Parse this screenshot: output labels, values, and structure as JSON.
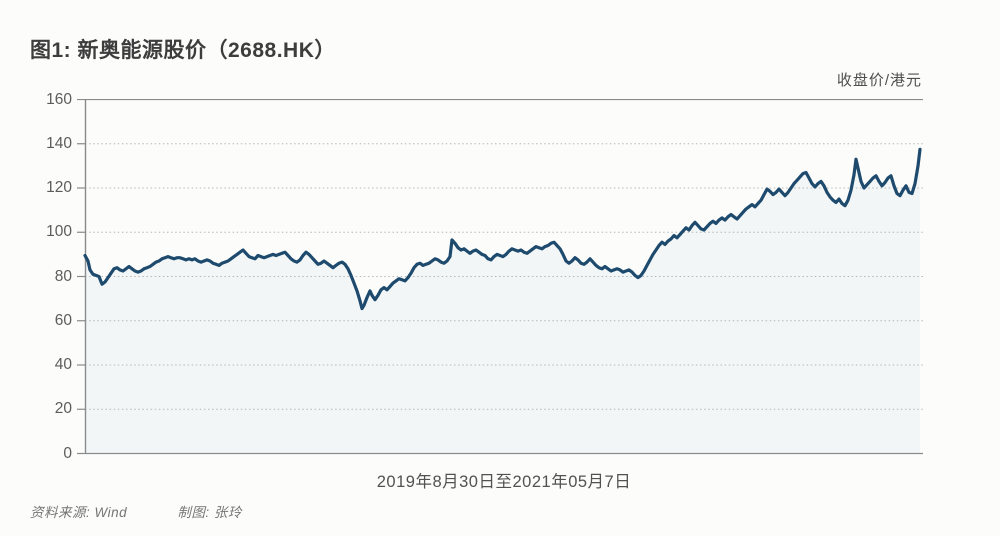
{
  "title": "图1: 新奥能源股价（2688.HK）",
  "unit_label": "收盘价/港元",
  "x_axis_label": "2019年8月30日至2021年05月7日",
  "footer": {
    "source": "资料来源: Wind",
    "credit": "制图: 张玲"
  },
  "colors": {
    "line": "#1d4a6d",
    "fill": "rgba(125,165,205,0.07)",
    "axis": "#8a8a8a",
    "grid": "#b8b8b8",
    "title_text": "#3d3d3d",
    "label_text": "#5c5c5c"
  },
  "chart_data": {
    "type": "line",
    "title": "新奥能源股价（2688.HK）",
    "ylabel": "收盘价/港元",
    "xlabel": "2019年8月30日至2021年05月7日",
    "x_range_note": "2019-08-30 to 2021-05-07, x in plot pixels 0-835",
    "ylim": [
      0,
      160
    ],
    "yticks": [
      0,
      20,
      40,
      60,
      80,
      100,
      120,
      140,
      160
    ],
    "grid": "horizontal-dotted",
    "legend": "none",
    "series": [
      {
        "name": "收盘价",
        "points": [
          [
            0,
            89.5
          ],
          [
            3,
            87
          ],
          [
            5,
            83
          ],
          [
            8,
            81
          ],
          [
            11,
            80.5
          ],
          [
            14,
            80
          ],
          [
            17,
            76.5
          ],
          [
            20,
            77.5
          ],
          [
            23,
            79.5
          ],
          [
            26,
            81.5
          ],
          [
            29,
            83.5
          ],
          [
            32,
            84
          ],
          [
            35,
            83
          ],
          [
            38,
            82.5
          ],
          [
            41,
            83.5
          ],
          [
            44,
            84.5
          ],
          [
            47,
            83.5
          ],
          [
            50,
            82.5
          ],
          [
            53,
            82
          ],
          [
            56,
            82.5
          ],
          [
            59,
            83.5
          ],
          [
            62,
            84
          ],
          [
            65,
            84.5
          ],
          [
            68,
            85.5
          ],
          [
            71,
            86.5
          ],
          [
            74,
            87
          ],
          [
            77,
            88
          ],
          [
            80,
            88.5
          ],
          [
            83,
            89
          ],
          [
            86,
            88.5
          ],
          [
            89,
            88
          ],
          [
            92,
            88.5
          ],
          [
            95,
            88.5
          ],
          [
            98,
            88
          ],
          [
            101,
            87.5
          ],
          [
            104,
            88
          ],
          [
            107,
            87.5
          ],
          [
            110,
            88
          ],
          [
            113,
            87
          ],
          [
            116,
            86.5
          ],
          [
            119,
            87
          ],
          [
            122,
            87.5
          ],
          [
            125,
            87
          ],
          [
            128,
            86
          ],
          [
            131,
            85.5
          ],
          [
            134,
            85
          ],
          [
            137,
            86
          ],
          [
            140,
            86.5
          ],
          [
            143,
            87
          ],
          [
            146,
            88
          ],
          [
            149,
            89
          ],
          [
            152,
            90
          ],
          [
            155,
            91
          ],
          [
            158,
            92
          ],
          [
            161,
            90.5
          ],
          [
            164,
            89
          ],
          [
            167,
            88.5
          ],
          [
            170,
            88
          ],
          [
            173,
            89.5
          ],
          [
            176,
            89
          ],
          [
            179,
            88.5
          ],
          [
            182,
            89
          ],
          [
            185,
            89.5
          ],
          [
            188,
            90
          ],
          [
            191,
            89.5
          ],
          [
            194,
            90
          ],
          [
            197,
            90.5
          ],
          [
            200,
            91
          ],
          [
            203,
            89.5
          ],
          [
            206,
            88
          ],
          [
            209,
            87
          ],
          [
            212,
            86.5
          ],
          [
            215,
            87.5
          ],
          [
            218,
            89.5
          ],
          [
            221,
            91
          ],
          [
            224,
            90
          ],
          [
            227,
            88.5
          ],
          [
            230,
            87
          ],
          [
            233,
            85.5
          ],
          [
            236,
            86
          ],
          [
            239,
            87
          ],
          [
            242,
            86
          ],
          [
            245,
            85
          ],
          [
            248,
            84
          ],
          [
            251,
            85
          ],
          [
            254,
            86
          ],
          [
            257,
            86.5
          ],
          [
            260,
            85.5
          ],
          [
            263,
            83.5
          ],
          [
            266,
            80.5
          ],
          [
            269,
            77
          ],
          [
            272,
            73.5
          ],
          [
            275,
            69
          ],
          [
            277,
            65.5
          ],
          [
            279,
            67
          ],
          [
            282,
            70.5
          ],
          [
            285,
            73.5
          ],
          [
            287,
            71.5
          ],
          [
            290,
            69.5
          ],
          [
            293,
            71.5
          ],
          [
            296,
            74
          ],
          [
            299,
            75
          ],
          [
            302,
            74
          ],
          [
            305,
            75.5
          ],
          [
            308,
            77
          ],
          [
            311,
            78
          ],
          [
            314,
            79
          ],
          [
            317,
            78.5
          ],
          [
            320,
            78
          ],
          [
            323,
            79.5
          ],
          [
            326,
            81.5
          ],
          [
            329,
            84
          ],
          [
            332,
            85.5
          ],
          [
            335,
            86
          ],
          [
            338,
            85
          ],
          [
            341,
            85.5
          ],
          [
            344,
            86
          ],
          [
            347,
            87
          ],
          [
            350,
            88
          ],
          [
            353,
            87.5
          ],
          [
            356,
            86.5
          ],
          [
            359,
            86
          ],
          [
            362,
            87
          ],
          [
            365,
            89
          ],
          [
            367,
            96.5
          ],
          [
            370,
            95
          ],
          [
            373,
            93
          ],
          [
            376,
            92
          ],
          [
            379,
            92.5
          ],
          [
            382,
            91.5
          ],
          [
            385,
            90.5
          ],
          [
            388,
            91.5
          ],
          [
            391,
            92
          ],
          [
            394,
            91
          ],
          [
            397,
            90
          ],
          [
            400,
            89.5
          ],
          [
            403,
            88
          ],
          [
            406,
            87.5
          ],
          [
            409,
            89
          ],
          [
            412,
            90
          ],
          [
            415,
            89.5
          ],
          [
            418,
            89
          ],
          [
            421,
            90
          ],
          [
            424,
            91.5
          ],
          [
            427,
            92.5
          ],
          [
            430,
            92
          ],
          [
            433,
            91.5
          ],
          [
            436,
            92
          ],
          [
            439,
            91
          ],
          [
            442,
            90.5
          ],
          [
            445,
            91.5
          ],
          [
            448,
            92.5
          ],
          [
            451,
            93.5
          ],
          [
            454,
            93
          ],
          [
            457,
            92.5
          ],
          [
            460,
            93.5
          ],
          [
            463,
            94
          ],
          [
            466,
            95
          ],
          [
            469,
            95.5
          ],
          [
            472,
            94
          ],
          [
            475,
            92.5
          ],
          [
            478,
            90
          ],
          [
            481,
            87
          ],
          [
            484,
            86
          ],
          [
            487,
            87
          ],
          [
            490,
            88.5
          ],
          [
            493,
            87.5
          ],
          [
            496,
            86
          ],
          [
            499,
            85.5
          ],
          [
            502,
            86.5
          ],
          [
            505,
            88
          ],
          [
            508,
            86.5
          ],
          [
            511,
            85
          ],
          [
            514,
            84
          ],
          [
            517,
            83.5
          ],
          [
            520,
            84.5
          ],
          [
            523,
            83.5
          ],
          [
            526,
            82.5
          ],
          [
            529,
            83
          ],
          [
            532,
            83.5
          ],
          [
            535,
            83
          ],
          [
            538,
            82
          ],
          [
            541,
            82.5
          ],
          [
            544,
            83
          ],
          [
            547,
            82
          ],
          [
            550,
            80.5
          ],
          [
            553,
            79.5
          ],
          [
            556,
            80.5
          ],
          [
            559,
            82.5
          ],
          [
            562,
            85
          ],
          [
            565,
            87.5
          ],
          [
            568,
            90
          ],
          [
            571,
            92
          ],
          [
            574,
            94
          ],
          [
            577,
            95.5
          ],
          [
            580,
            94.5
          ],
          [
            583,
            96
          ],
          [
            586,
            97
          ],
          [
            589,
            98.5
          ],
          [
            592,
            97.5
          ],
          [
            595,
            99
          ],
          [
            598,
            100.5
          ],
          [
            601,
            102
          ],
          [
            604,
            101
          ],
          [
            607,
            103
          ],
          [
            610,
            104.5
          ],
          [
            613,
            103
          ],
          [
            616,
            101.5
          ],
          [
            619,
            101
          ],
          [
            622,
            102.5
          ],
          [
            625,
            104
          ],
          [
            628,
            105
          ],
          [
            631,
            104
          ],
          [
            634,
            105.5
          ],
          [
            637,
            106.5
          ],
          [
            640,
            105.5
          ],
          [
            643,
            107
          ],
          [
            646,
            108
          ],
          [
            649,
            107
          ],
          [
            652,
            106
          ],
          [
            655,
            107.5
          ],
          [
            658,
            109
          ],
          [
            661,
            110.5
          ],
          [
            664,
            111.5
          ],
          [
            667,
            112.5
          ],
          [
            670,
            111.5
          ],
          [
            673,
            113
          ],
          [
            676,
            114.5
          ],
          [
            679,
            117
          ],
          [
            682,
            119.5
          ],
          [
            685,
            118.5
          ],
          [
            688,
            117
          ],
          [
            691,
            118
          ],
          [
            694,
            119.5
          ],
          [
            697,
            118
          ],
          [
            700,
            116.5
          ],
          [
            703,
            118
          ],
          [
            706,
            120
          ],
          [
            709,
            122
          ],
          [
            712,
            123.5
          ],
          [
            715,
            125
          ],
          [
            718,
            126.5
          ],
          [
            721,
            127
          ],
          [
            724,
            124.5
          ],
          [
            727,
            122
          ],
          [
            730,
            120.5
          ],
          [
            733,
            122
          ],
          [
            736,
            123
          ],
          [
            739,
            121
          ],
          [
            742,
            118
          ],
          [
            745,
            116
          ],
          [
            748,
            114.5
          ],
          [
            751,
            113.5
          ],
          [
            754,
            115
          ],
          [
            757,
            113
          ],
          [
            760,
            112
          ],
          [
            763,
            114.5
          ],
          [
            766,
            119
          ],
          [
            769,
            126
          ],
          [
            771,
            133
          ],
          [
            773,
            129
          ],
          [
            776,
            123
          ],
          [
            779,
            120
          ],
          [
            782,
            121.5
          ],
          [
            785,
            123
          ],
          [
            788,
            124.5
          ],
          [
            791,
            125.5
          ],
          [
            794,
            123
          ],
          [
            797,
            121
          ],
          [
            800,
            122.5
          ],
          [
            803,
            124.5
          ],
          [
            806,
            125.5
          ],
          [
            809,
            121
          ],
          [
            812,
            117.5
          ],
          [
            815,
            116.5
          ],
          [
            818,
            119
          ],
          [
            821,
            121
          ],
          [
            824,
            118
          ],
          [
            827,
            117.5
          ],
          [
            830,
            122
          ],
          [
            833,
            130
          ],
          [
            835,
            137.5
          ]
        ]
      }
    ]
  }
}
